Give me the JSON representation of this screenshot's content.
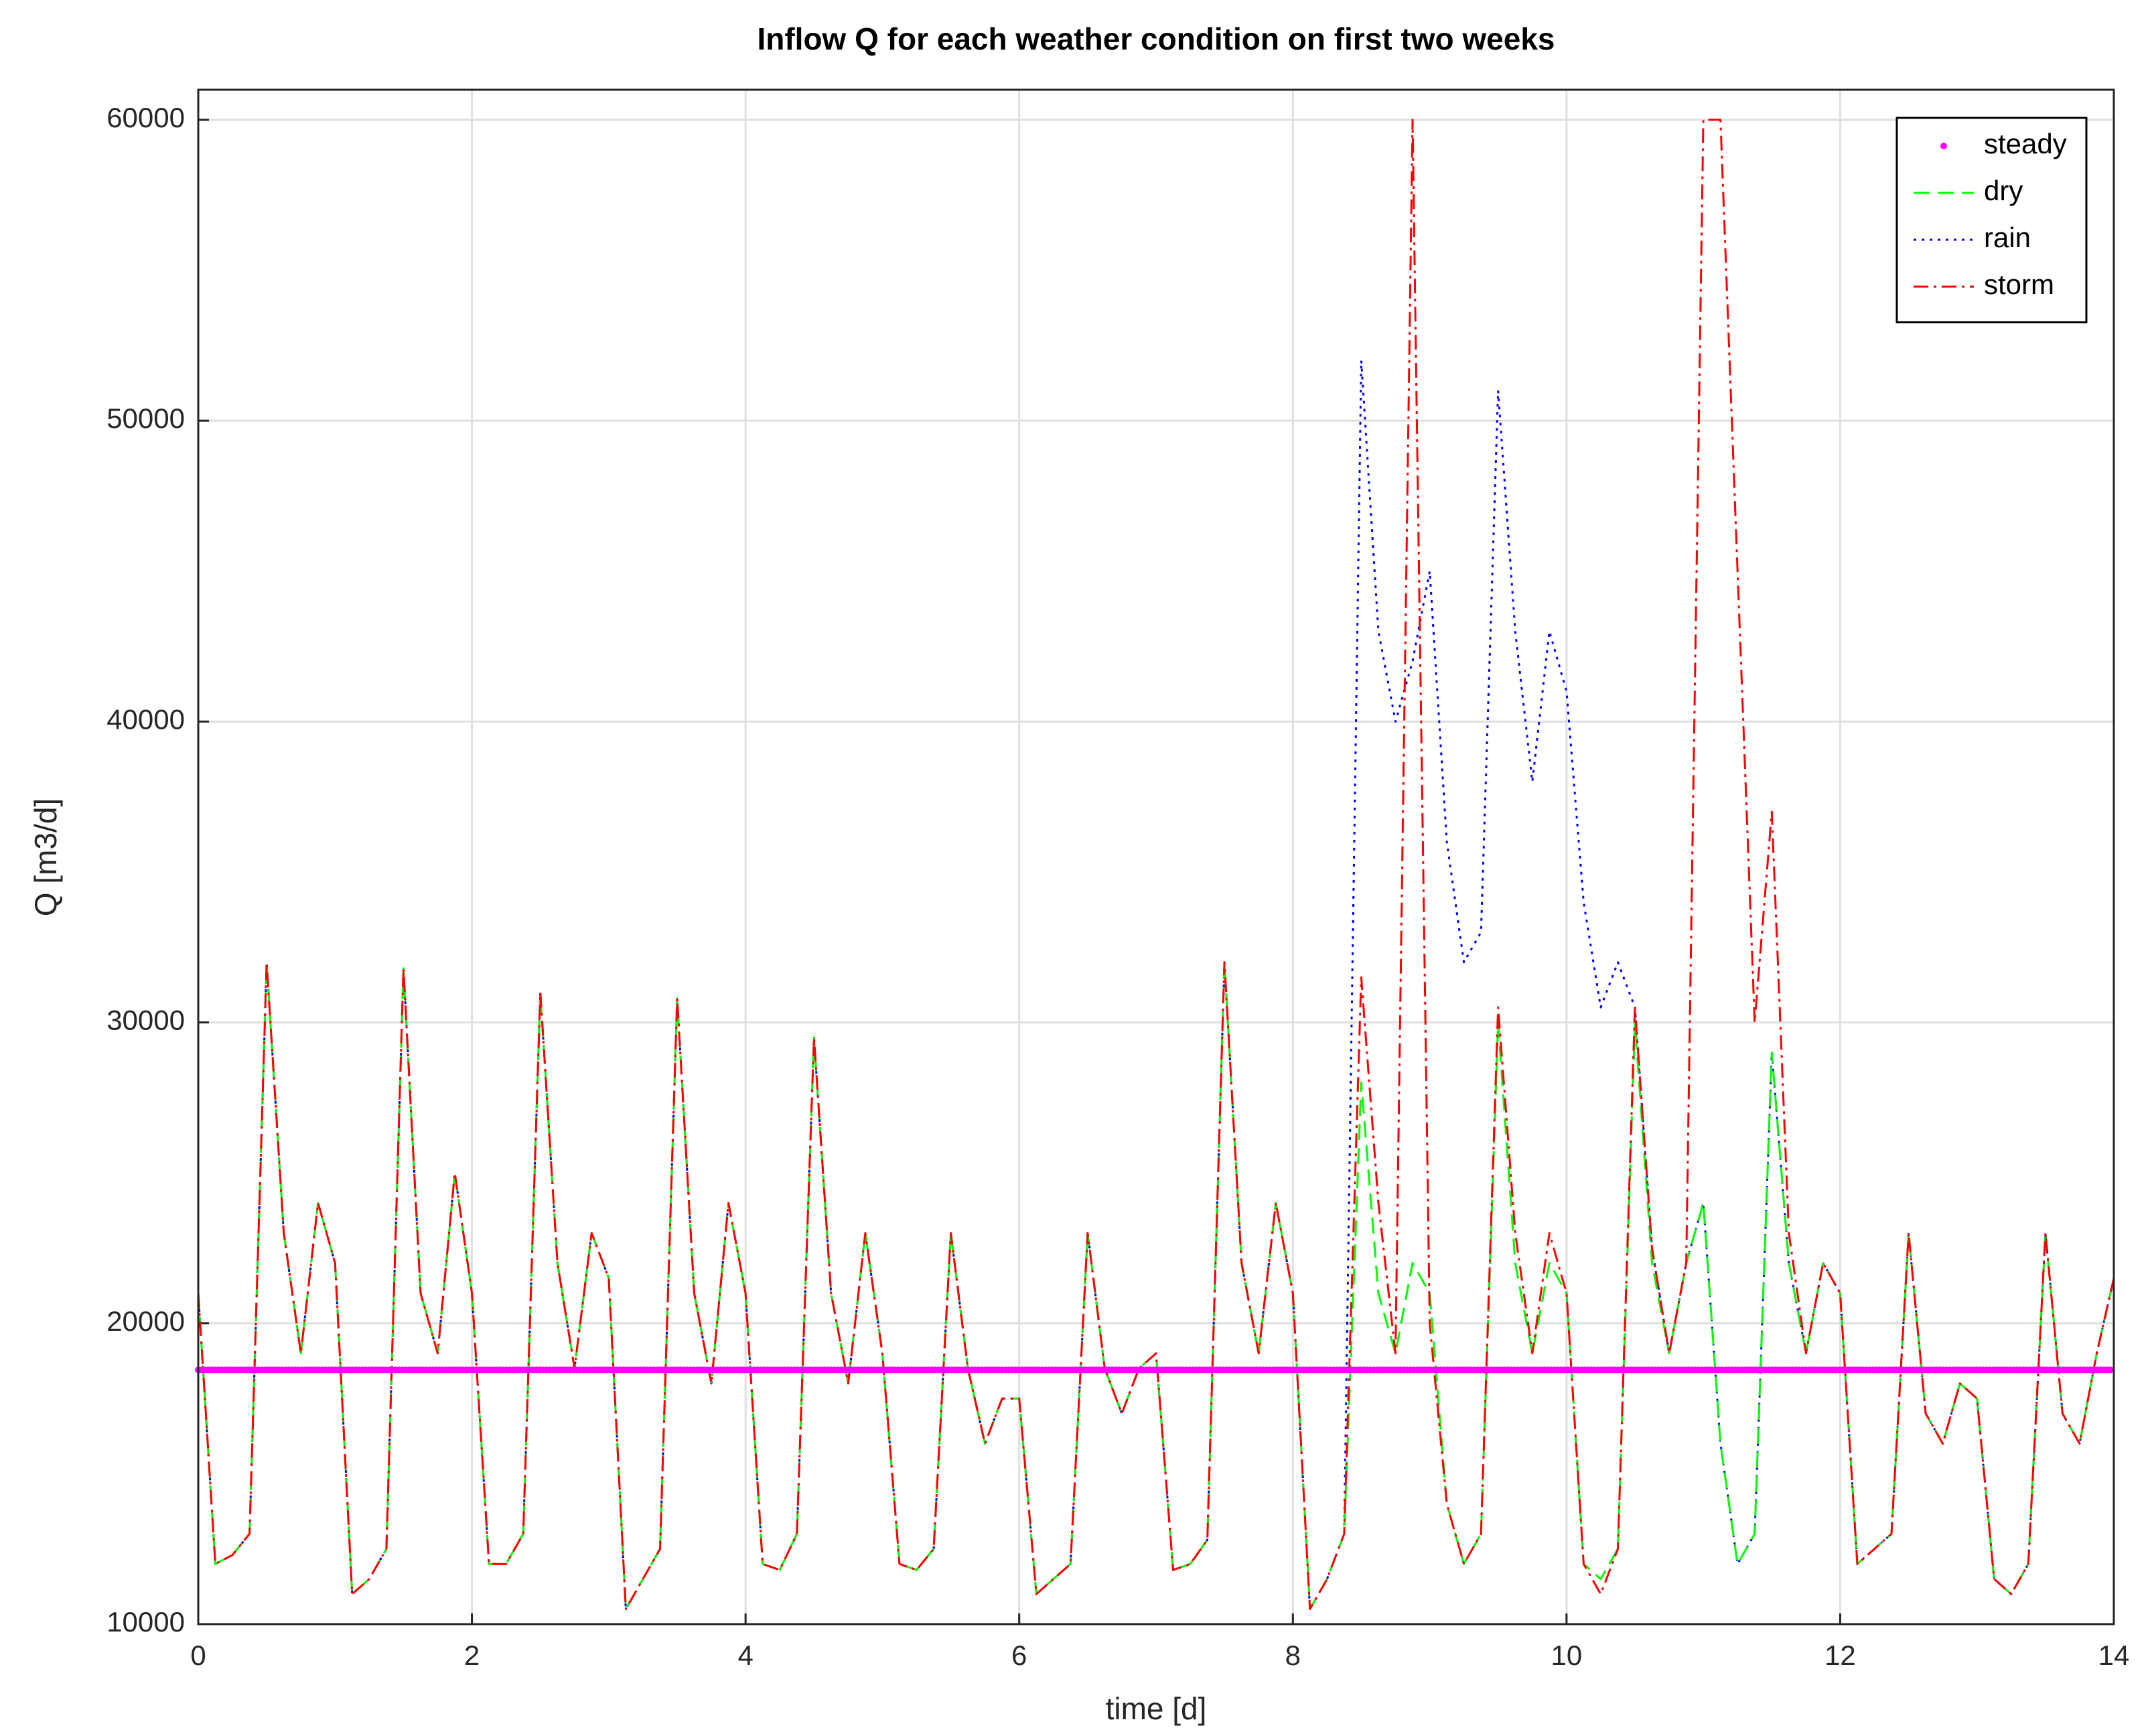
{
  "chart_data": {
    "type": "line",
    "title": "Inflow Q for each weather condition on first two weeks",
    "xlabel": "time [d]",
    "ylabel": "Q [m3/d]",
    "xlim": [
      0,
      14
    ],
    "xticks": [
      0,
      2,
      4,
      6,
      8,
      10,
      12,
      14
    ],
    "ylim": [
      10000,
      61000
    ],
    "yticks": [
      10000,
      20000,
      30000,
      40000,
      50000,
      60000
    ],
    "grid": true,
    "legend": "northeast",
    "x": [
      0,
      0.125,
      0.25,
      0.375,
      0.5,
      0.625,
      0.75,
      0.875,
      1,
      1.125,
      1.25,
      1.375,
      1.5,
      1.625,
      1.75,
      1.875,
      2,
      2.125,
      2.25,
      2.375,
      2.5,
      2.625,
      2.75,
      2.875,
      3,
      3.125,
      3.25,
      3.375,
      3.5,
      3.625,
      3.75,
      3.875,
      4,
      4.125,
      4.25,
      4.375,
      4.5,
      4.625,
      4.75,
      4.875,
      5,
      5.125,
      5.25,
      5.375,
      5.5,
      5.625,
      5.75,
      5.875,
      6,
      6.125,
      6.25,
      6.375,
      6.5,
      6.625,
      6.75,
      6.875,
      7,
      7.125,
      7.25,
      7.375,
      7.5,
      7.625,
      7.75,
      7.875,
      8,
      8.125,
      8.25,
      8.375,
      8.5,
      8.625,
      8.75,
      8.875,
      9,
      9.125,
      9.25,
      9.375,
      9.5,
      9.625,
      9.75,
      9.875,
      10,
      10.125,
      10.25,
      10.375,
      10.5,
      10.625,
      10.75,
      10.875,
      11,
      11.125,
      11.25,
      11.375,
      11.5,
      11.625,
      11.75,
      11.875,
      12,
      12.125,
      12.25,
      12.375,
      12.5,
      12.625,
      12.75,
      12.875,
      13,
      13.125,
      13.25,
      13.375,
      13.5,
      13.625,
      13.75,
      13.875,
      14
    ],
    "series": [
      {
        "name": "steady",
        "color": "#ff00ff",
        "linestyle": "dots",
        "x": [
          0,
          14
        ],
        "values": [
          18450,
          18450
        ]
      },
      {
        "name": "dry",
        "color": "#00ff00",
        "linestyle": "dashed",
        "values": [
          21000,
          12000,
          12300,
          13000,
          32000,
          23000,
          19000,
          24000,
          22000,
          11000,
          11500,
          12500,
          31800,
          21000,
          19000,
          25000,
          21000,
          12000,
          12000,
          13000,
          31000,
          22000,
          18500,
          23000,
          21500,
          10500,
          11500,
          12500,
          30800,
          21000,
          18000,
          24000,
          21000,
          12000,
          11800,
          13000,
          29500,
          21000,
          18000,
          23000,
          19000,
          12000,
          11800,
          12500,
          23000,
          18500,
          16000,
          17500,
          17500,
          11000,
          11500,
          12000,
          23000,
          18500,
          17000,
          18500,
          19000,
          11800,
          12000,
          12800,
          32000,
          22000,
          19000,
          24000,
          21000,
          10500,
          11500,
          13000,
          28000,
          21000,
          19000,
          22000,
          21000,
          14000,
          12000,
          13000,
          30000,
          22000,
          19000,
          22000,
          21000,
          12000,
          11500,
          12500,
          30000,
          22000,
          19000,
          22000,
          24000,
          16000,
          12000,
          13000,
          29000,
          22000,
          19000,
          22000,
          21000,
          12000,
          12500,
          13000,
          23000,
          17000,
          16000,
          18000,
          17500,
          11500,
          11000,
          12000,
          23000,
          17000,
          16000,
          19000,
          21500
        ]
      },
      {
        "name": "rain",
        "color": "#0000ff",
        "linestyle": "dotted",
        "values": [
          21000,
          12000,
          12300,
          13000,
          32000,
          23000,
          19000,
          24000,
          22000,
          11000,
          11500,
          12500,
          31800,
          21000,
          19000,
          25000,
          21000,
          12000,
          12000,
          13000,
          31000,
          22000,
          18500,
          23000,
          21500,
          10500,
          11500,
          12500,
          30800,
          21000,
          18000,
          24000,
          21000,
          12000,
          11800,
          13000,
          29500,
          21000,
          18000,
          23000,
          19000,
          12000,
          11800,
          12500,
          23000,
          18500,
          16000,
          17500,
          17500,
          11000,
          11500,
          12000,
          23000,
          18500,
          17000,
          18500,
          19000,
          11800,
          12000,
          12800,
          32000,
          22000,
          19000,
          24000,
          21000,
          10500,
          11500,
          13000,
          52000,
          43000,
          40000,
          42000,
          45000,
          36000,
          32000,
          33000,
          51000,
          43000,
          38000,
          43000,
          41000,
          34000,
          30500,
          32000,
          30500,
          22500,
          19000,
          22000,
          24000,
          16000,
          12000,
          13000,
          29000,
          22000,
          19000,
          22000,
          21000,
          12000,
          12500,
          13000,
          23000,
          17000,
          16000,
          18000,
          17500,
          11500,
          11000,
          12000,
          23000,
          17000,
          16000,
          19000,
          21500
        ]
      },
      {
        "name": "storm",
        "color": "#ff0000",
        "linestyle": "dashdot",
        "values": [
          21000,
          12000,
          12300,
          13000,
          32000,
          23000,
          19000,
          24000,
          22000,
          11000,
          11500,
          12500,
          31800,
          21000,
          19000,
          25000,
          21000,
          12000,
          12000,
          13000,
          31000,
          22000,
          18500,
          23000,
          21500,
          10500,
          11500,
          12500,
          30800,
          21000,
          18000,
          24000,
          21000,
          12000,
          11800,
          13000,
          29500,
          21000,
          18000,
          23000,
          19000,
          12000,
          11800,
          12500,
          23000,
          18500,
          16000,
          17500,
          17500,
          11000,
          11500,
          12000,
          23000,
          18500,
          17000,
          18500,
          19000,
          11800,
          12000,
          12800,
          32000,
          22000,
          19000,
          24000,
          21000,
          10500,
          11500,
          13000,
          31500,
          24000,
          19000,
          60000,
          20000,
          14000,
          12000,
          13000,
          30500,
          23000,
          19000,
          23000,
          21000,
          12000,
          11000,
          12500,
          30500,
          22500,
          19000,
          22000,
          60000,
          60000,
          45000,
          30000,
          37000,
          23000,
          19000,
          22000,
          21000,
          12000,
          12500,
          13000,
          23000,
          17000,
          16000,
          18000,
          17500,
          11500,
          11000,
          12000,
          23000,
          17000,
          16000,
          19000,
          21500
        ]
      }
    ]
  }
}
